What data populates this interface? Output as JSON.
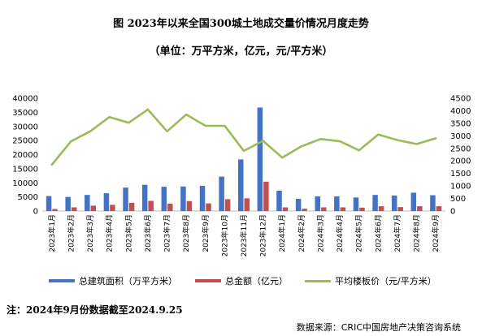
{
  "title": "图 2023年以来全国300城土地成交量价情况月度走势",
  "subtitle": "（单位：万平方米，亿元，元/平方米）",
  "note": "注：2024年9月份数据截至2024.9.25",
  "source": "数据来源：CRIC中国房地产决策咨询系统",
  "colors": {
    "area": "#4472c4",
    "amount": "#c0504d",
    "price": "#9bbb59"
  },
  "chart_data": {
    "type": "bar",
    "categories": [
      "2023年1月",
      "2023年2月",
      "2023年3月",
      "2023年4月",
      "2023年5月",
      "2023年6月",
      "2023年7月",
      "2023年8月",
      "2023年9月",
      "2023年10月",
      "2023年11月",
      "2023年12月",
      "2024年1月",
      "2024年2月",
      "2024年3月",
      "2024年4月",
      "2024年5月",
      "2024年6月",
      "2024年7月",
      "2024年8月",
      "2024年9月"
    ],
    "y_left": {
      "min": 0,
      "max": 40000,
      "step": 5000,
      "ticks": [
        "0",
        "5000",
        "10000",
        "15000",
        "20000",
        "25000",
        "30000",
        "35000",
        "40000"
      ]
    },
    "y_right": {
      "min": 0,
      "max": 4500,
      "step": 500,
      "ticks": [
        "0",
        "500",
        "1000",
        "1500",
        "2000",
        "2500",
        "3000",
        "3500",
        "4000",
        "4500"
      ]
    },
    "series": [
      {
        "name": "总建筑面积（万平方米）",
        "type": "bar",
        "axis": "left",
        "values": [
          5300,
          5000,
          5700,
          6300,
          8300,
          9300,
          8600,
          8700,
          8900,
          12200,
          18300,
          36700,
          7200,
          4300,
          5200,
          5200,
          4800,
          5700,
          5500,
          6500,
          5600
        ]
      },
      {
        "name": "总金额（亿元）",
        "type": "bar",
        "axis": "left",
        "values": [
          700,
          1300,
          1900,
          2200,
          2900,
          3600,
          2600,
          3500,
          2700,
          4200,
          4500,
          10400,
          1300,
          800,
          1300,
          1300,
          1200,
          1700,
          1400,
          1700,
          1700
        ]
      },
      {
        "name": "平均楼板价（元/平方米）",
        "type": "line",
        "axis": "right",
        "values": [
          1850,
          2780,
          3180,
          3750,
          3520,
          4050,
          3180,
          3850,
          3400,
          3400,
          2400,
          2800,
          2130,
          2580,
          2870,
          2780,
          2420,
          3050,
          2830,
          2670,
          2900
        ]
      }
    ]
  }
}
